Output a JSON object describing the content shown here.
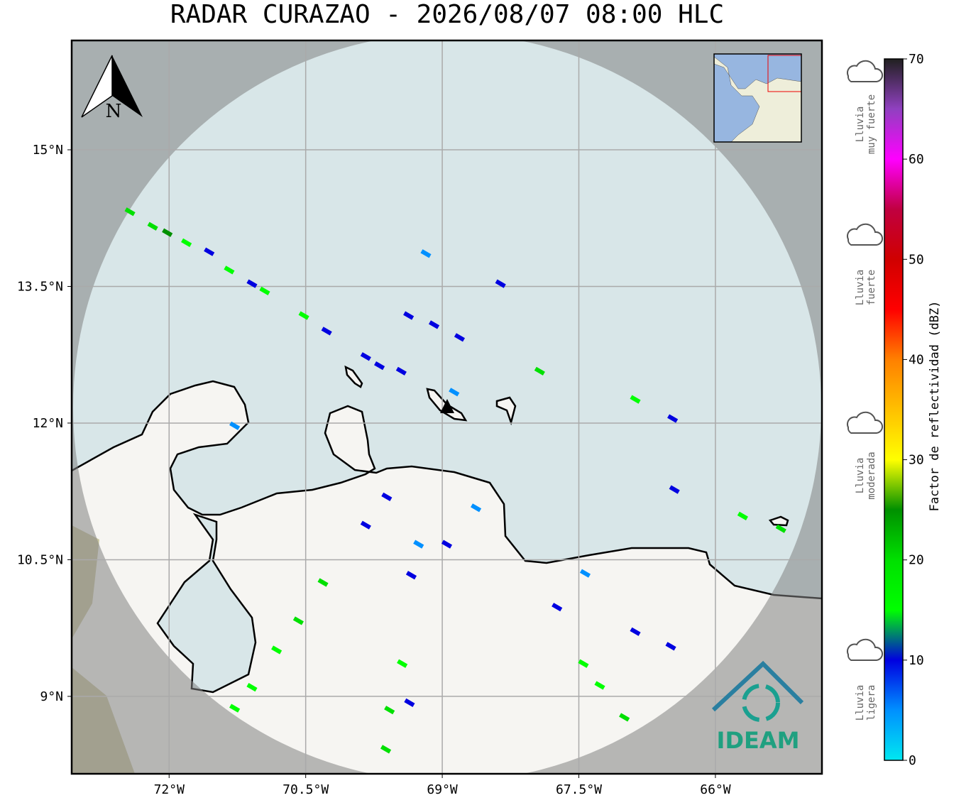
{
  "title": "RADAR CURAZAO - 2026/08/07 08:00 HLC",
  "north_label": "N",
  "logo_text": "IDEAM",
  "map": {
    "xlim": [
      -73.07,
      -64.83
    ],
    "ylim": [
      8.15,
      16.2
    ],
    "xticks": [
      {
        "value": -72,
        "label": "72°W"
      },
      {
        "value": -70.5,
        "label": "70.5°W"
      },
      {
        "value": -69,
        "label": "69°W"
      },
      {
        "value": -67.5,
        "label": "67.5°W"
      },
      {
        "value": -66,
        "label": "66°W"
      }
    ],
    "yticks": [
      {
        "value": 15,
        "label": "15°N"
      },
      {
        "value": 13.5,
        "label": "13.5°N"
      },
      {
        "value": 12,
        "label": "12°N"
      },
      {
        "value": 10.5,
        "label": "10.5°N"
      },
      {
        "value": 9,
        "label": "9°N"
      }
    ],
    "grid": true,
    "echoes": {
      "lon": [
        -72.43,
        -72.18,
        -72.02,
        -71.81,
        -71.56,
        -71.34,
        -71.09,
        -70.95,
        -70.52,
        -70.27,
        -69.84,
        -69.69,
        -69.45,
        -69.18,
        -69.37,
        -69.09,
        -68.81,
        -68.87,
        -68.36,
        -67.93,
        -66.88,
        -66.47,
        -71.28,
        -69.61,
        -69.84,
        -70.31,
        -70.58,
        -70.82,
        -71.09,
        -71.28,
        -69.58,
        -69.62,
        -69.44,
        -69.36,
        -68.63,
        -67.74,
        -67.45,
        -67.27,
        -67.0,
        -66.88,
        -66.49,
        -65.7,
        -65.28,
        -66.45,
        -68.95,
        -69.26,
        -69.34,
        -67.43
      ],
      "lat": [
        14.32,
        14.16,
        14.09,
        13.98,
        13.88,
        13.68,
        13.53,
        13.45,
        13.18,
        13.01,
        12.73,
        12.63,
        12.57,
        13.86,
        13.18,
        13.08,
        12.94,
        12.34,
        13.53,
        12.57,
        12.26,
        12.05,
        11.97,
        11.19,
        10.88,
        10.25,
        9.83,
        9.51,
        9.1,
        8.87,
        8.85,
        8.42,
        9.36,
        8.93,
        11.07,
        9.98,
        9.36,
        9.12,
        8.77,
        9.71,
        9.55,
        10.98,
        10.84,
        11.27,
        10.67,
        10.67,
        10.33,
        10.35
      ],
      "dbz": [
        18,
        18,
        25,
        15,
        8,
        15,
        8,
        15,
        15,
        8,
        10,
        12,
        8,
        5,
        10,
        10,
        8,
        5,
        10,
        20,
        15,
        8,
        5,
        8,
        10,
        18,
        18,
        15,
        15,
        15,
        18,
        18,
        14,
        8,
        5,
        10,
        15,
        15,
        18,
        8,
        8,
        15,
        18,
        8,
        12,
        5,
        8,
        5
      ]
    }
  },
  "colorbar": {
    "label": "Factor de reflectividad (dBZ)",
    "lim": [
      0,
      70
    ],
    "ticks": [
      0,
      10,
      20,
      30,
      40,
      50,
      60,
      70
    ],
    "colors": [
      "#00e8f0",
      "#0090ff",
      "#0000e0",
      "#00ff00",
      "#00e000",
      "#009000",
      "#ffff00",
      "#ffc000",
      "#ff8000",
      "#ff0000",
      "#d00000",
      "#c00040",
      "#ff00ff",
      "#9040c0",
      "#202020"
    ]
  },
  "rain_labels": [
    [
      "Lluvia",
      "muy fuerte"
    ],
    [
      "Lluvia",
      "fuerte"
    ],
    [
      "Lluvia",
      "moderada"
    ],
    [
      "Lluvia",
      "ligera"
    ]
  ]
}
